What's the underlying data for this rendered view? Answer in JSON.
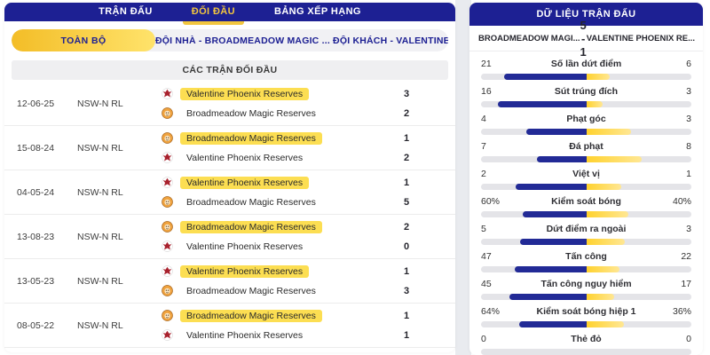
{
  "left_panel": {
    "tabs": [
      {
        "name": "tab-matches",
        "label": "TRẬN ĐẤU",
        "active": false
      },
      {
        "name": "tab-head-to-head",
        "label": "ĐỐI ĐẦU",
        "active": true
      },
      {
        "name": "tab-standings",
        "label": "BẢNG XẾP HẠNG",
        "active": false
      }
    ],
    "filter": {
      "all_label": "TOÀN BỘ",
      "teams_label": "ĐỘI NHÀ - BROADMEADOW MAGIC ... ĐỘI KHÁCH - VALENTINE PHOENIX ..."
    },
    "section_title": "CÁC TRẬN ĐỐI ĐẦU",
    "matches": [
      {
        "date": "12-06-25",
        "league": "NSW-N RL",
        "teams": [
          {
            "name": "Valentine Phoenix Reserves",
            "logo": "phoenix",
            "score": "3",
            "highlighted": true
          },
          {
            "name": "Broadmeadow Magic Reserves",
            "logo": "magic",
            "score": "2",
            "highlighted": false
          }
        ]
      },
      {
        "date": "15-08-24",
        "league": "NSW-N RL",
        "teams": [
          {
            "name": "Broadmeadow Magic Reserves",
            "logo": "magic",
            "score": "1",
            "highlighted": true
          },
          {
            "name": "Valentine Phoenix Reserves",
            "logo": "phoenix",
            "score": "2",
            "highlighted": false
          }
        ]
      },
      {
        "date": "04-05-24",
        "league": "NSW-N RL",
        "teams": [
          {
            "name": "Valentine Phoenix Reserves",
            "logo": "phoenix",
            "score": "1",
            "highlighted": true
          },
          {
            "name": "Broadmeadow Magic Reserves",
            "logo": "magic",
            "score": "5",
            "highlighted": false
          }
        ]
      },
      {
        "date": "13-08-23",
        "league": "NSW-N RL",
        "teams": [
          {
            "name": "Broadmeadow Magic Reserves",
            "logo": "magic",
            "score": "2",
            "highlighted": true
          },
          {
            "name": "Valentine Phoenix Reserves",
            "logo": "phoenix",
            "score": "0",
            "highlighted": false
          }
        ]
      },
      {
        "date": "13-05-23",
        "league": "NSW-N RL",
        "teams": [
          {
            "name": "Valentine Phoenix Reserves",
            "logo": "phoenix",
            "score": "1",
            "highlighted": true
          },
          {
            "name": "Broadmeadow Magic Reserves",
            "logo": "magic",
            "score": "3",
            "highlighted": false
          }
        ]
      },
      {
        "date": "08-05-22",
        "league": "NSW-N RL",
        "teams": [
          {
            "name": "Broadmeadow Magic Reserves",
            "logo": "magic",
            "score": "1",
            "highlighted": true
          },
          {
            "name": "Valentine Phoenix Reserves",
            "logo": "phoenix",
            "score": "1",
            "highlighted": false
          }
        ]
      }
    ]
  },
  "right_panel": {
    "title": "DỮ LIỆU TRẬN ĐẤU",
    "home_team": "BROADMEADOW MAGI...",
    "score": "5 - 1",
    "away_team": "VALENTINE PHOENIX RE...",
    "stats": [
      {
        "label": "Số lần dứt điểm",
        "home": "21",
        "away": "6",
        "home_pct": 78,
        "away_pct": 22
      },
      {
        "label": "Sút trúng đích",
        "home": "16",
        "away": "3",
        "home_pct": 84,
        "away_pct": 16
      },
      {
        "label": "Phạt góc",
        "home": "4",
        "away": "3",
        "home_pct": 57,
        "away_pct": 43
      },
      {
        "label": "Đá phạt",
        "home": "7",
        "away": "8",
        "home_pct": 47,
        "away_pct": 53
      },
      {
        "label": "Việt vị",
        "home": "2",
        "away": "1",
        "home_pct": 67,
        "away_pct": 33
      },
      {
        "label": "Kiểm soát bóng",
        "home": "60%",
        "away": "40%",
        "home_pct": 60,
        "away_pct": 40
      },
      {
        "label": "Dứt điểm ra ngoài",
        "home": "5",
        "away": "3",
        "home_pct": 63,
        "away_pct": 37
      },
      {
        "label": "Tấn công",
        "home": "47",
        "away": "22",
        "home_pct": 68,
        "away_pct": 32
      },
      {
        "label": "Tấn công nguy hiểm",
        "home": "45",
        "away": "17",
        "home_pct": 73,
        "away_pct": 27
      },
      {
        "label": "Kiểm soát bóng hiệp 1",
        "home": "64%",
        "away": "36%",
        "home_pct": 64,
        "away_pct": 36
      },
      {
        "label": "Thẻ đỏ",
        "home": "0",
        "away": "0",
        "home_pct": 0,
        "away_pct": 0
      }
    ]
  },
  "colors": {
    "navy": "#1d2093",
    "accent_yellow": "#f2c63e",
    "highlight_yellow": "#fcde52",
    "bar_blue": "#222a96",
    "bar_yellow": "#ffd22e",
    "bar_track": "#e4e4e8"
  }
}
